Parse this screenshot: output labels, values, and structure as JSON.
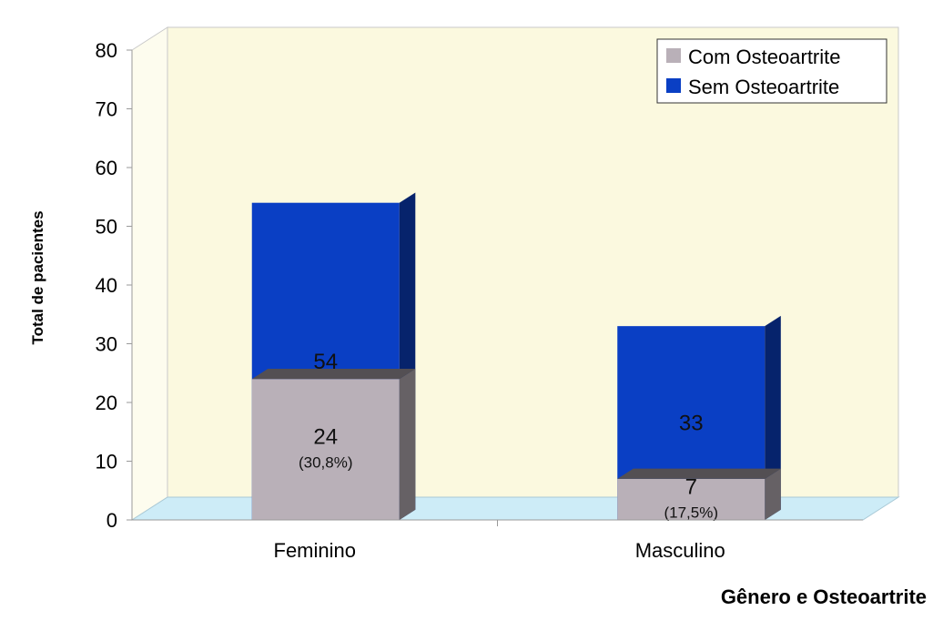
{
  "chart_data": {
    "type": "bar",
    "stacked": true,
    "three_d": true,
    "categories": [
      "Feminino",
      "Masculino"
    ],
    "series": [
      {
        "name": "Sem Osteoartrite",
        "values": [
          54,
          33
        ],
        "color": "#0a3fc4",
        "labels": [
          "54",
          "33"
        ]
      },
      {
        "name": "Com Osteoartrite",
        "values": [
          24,
          7
        ],
        "color": "#b9b0b8",
        "labels": [
          "24",
          "7"
        ],
        "sublabels": [
          "(30,8%)",
          "(17,5%)"
        ]
      }
    ],
    "legend": {
      "placement": "top-right",
      "order": [
        "Com Osteoartrite",
        "Sem Osteoartrite"
      ]
    },
    "xlabel": "Gênero e Osteoartrite",
    "ylabel": "Total de pacientes",
    "ylim": [
      0,
      80
    ],
    "yticks": [
      "0",
      "10",
      "20",
      "30",
      "40",
      "50",
      "60",
      "70",
      "80"
    ],
    "grid": false,
    "wall_color": "#fbf9df",
    "floor_color": "#cdecf7"
  }
}
